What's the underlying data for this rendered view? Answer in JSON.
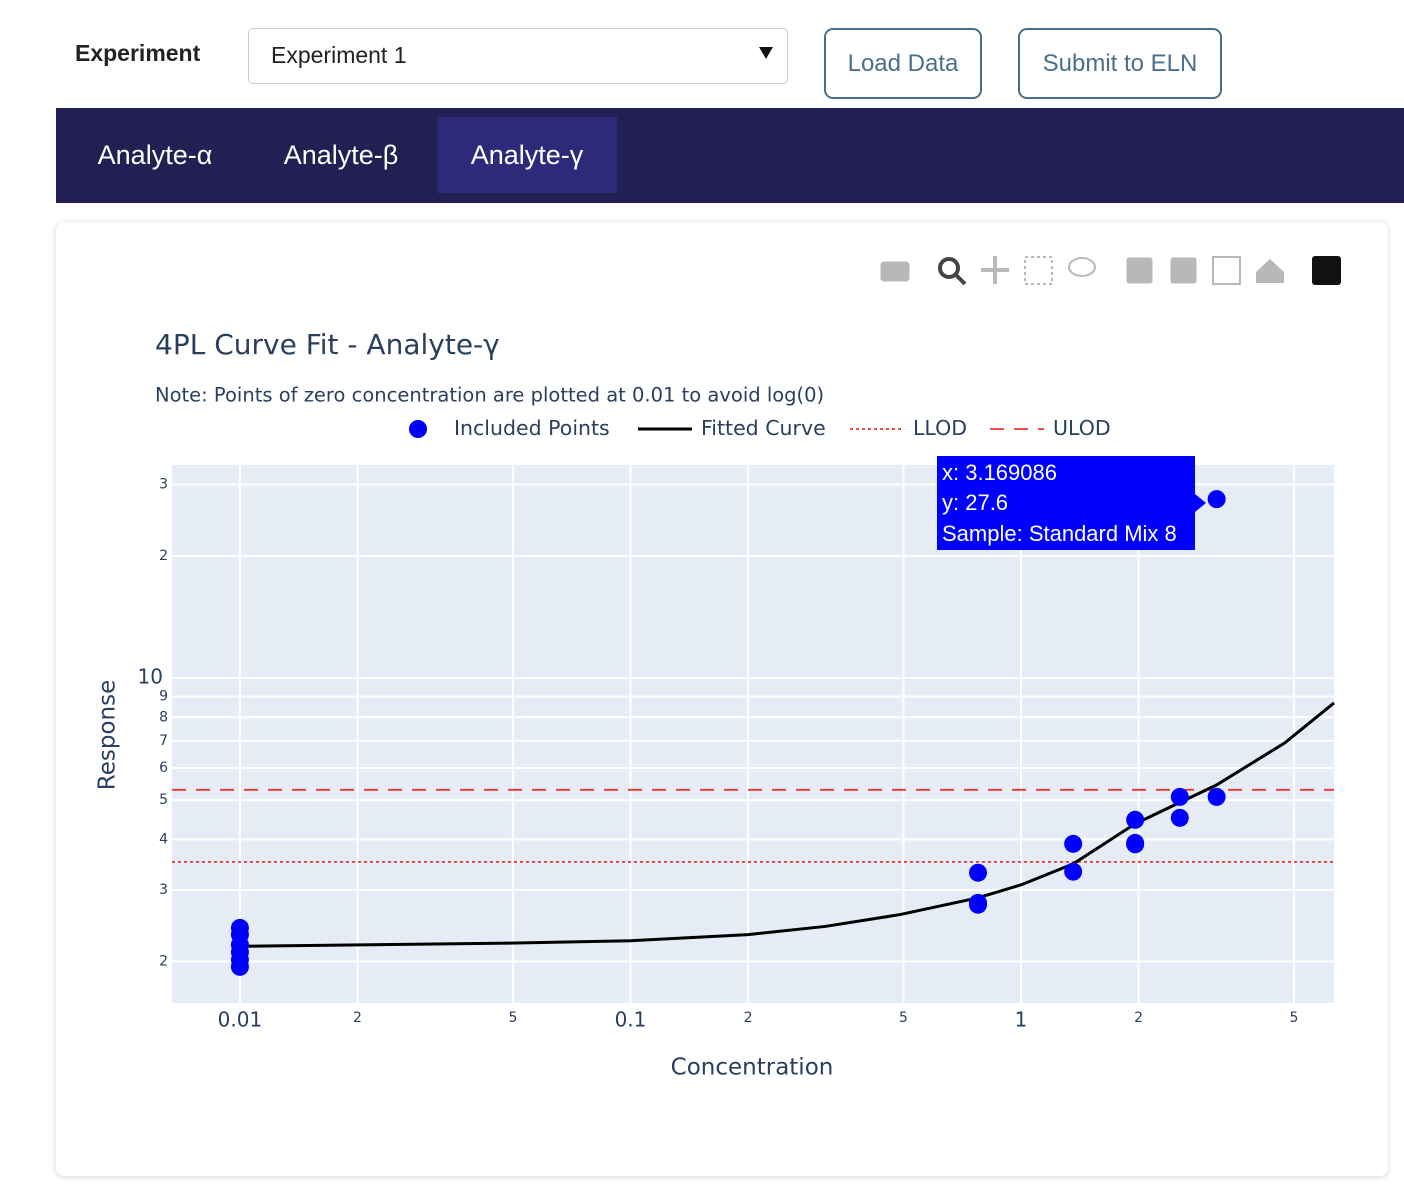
{
  "ui": {
    "experiment_label": "Experiment",
    "select_value": "Experiment 1",
    "buttons": [
      "Load Data",
      "Submit to ELN"
    ],
    "tabs": [
      "Analyte-α",
      "Analyte-β",
      "Analyte-γ"
    ]
  },
  "chart_data": {
    "type": "scatter",
    "title": "4PL Curve Fit - Analyte-γ",
    "subtitle": "Note: Points of zero concentration are plotted at 0.01 to avoid log(0)",
    "xlabel": "Concentration",
    "ylabel": "Response",
    "xlog": true,
    "ylog": true,
    "grid": true,
    "xlim": [
      0.0067,
      6.33
    ],
    "ylim": [
      1.58,
      33.5
    ],
    "xticks": [
      0.01,
      {
        "value": 0.02,
        "label": "2"
      },
      {
        "value": 0.05,
        "label": "5"
      },
      0.1,
      {
        "value": 0.2,
        "label": "2"
      },
      {
        "value": 0.5,
        "label": "5"
      },
      1,
      2,
      5
    ],
    "yticks": [
      2,
      3,
      4,
      5,
      6,
      7,
      8,
      9,
      10,
      {
        "value": 20,
        "label": "2"
      },
      {
        "value": 30,
        "label": "3"
      }
    ],
    "series": [
      {
        "name": "Included Points",
        "type": "scatter",
        "color": "#0000ff",
        "x": [
          0.01,
          0.01,
          0.01,
          0.01,
          0.01,
          0.01,
          0.776,
          0.776,
          0.776,
          1.36,
          1.36,
          1.96,
          1.96,
          1.96,
          2.55,
          2.55,
          3.169086,
          3.169086
        ],
        "values": [
          2.42,
          2.33,
          2.2,
          2.11,
          2.02,
          1.94,
          3.31,
          2.79,
          2.76,
          3.9,
          3.33,
          4.47,
          3.92,
          3.89,
          5.09,
          4.52,
          5.09,
          27.6
        ]
      },
      {
        "name": "Fitted Curve",
        "type": "line",
        "color": "#000000",
        "x": [
          0.01,
          0.049,
          0.1,
          0.2,
          0.315,
          0.49,
          0.776,
          1,
          1.36,
          1.96,
          3.169,
          4.74,
          6.33
        ],
        "values": [
          2.18,
          2.22,
          2.25,
          2.33,
          2.44,
          2.61,
          2.87,
          3.09,
          3.48,
          4.37,
          5.45,
          6.92,
          8.68
        ]
      },
      {
        "name": "LLOD",
        "type": "hline",
        "color": "#e8352e",
        "dash": "dot",
        "values": [
          3.52
        ]
      },
      {
        "name": "ULOD",
        "type": "hline",
        "color": "#e8352e",
        "dash": "dash",
        "values": [
          5.3
        ]
      }
    ],
    "tooltip": [
      "x: 3.169086",
      "y: 27.6",
      "Sample: Standard Mix 8"
    ]
  }
}
